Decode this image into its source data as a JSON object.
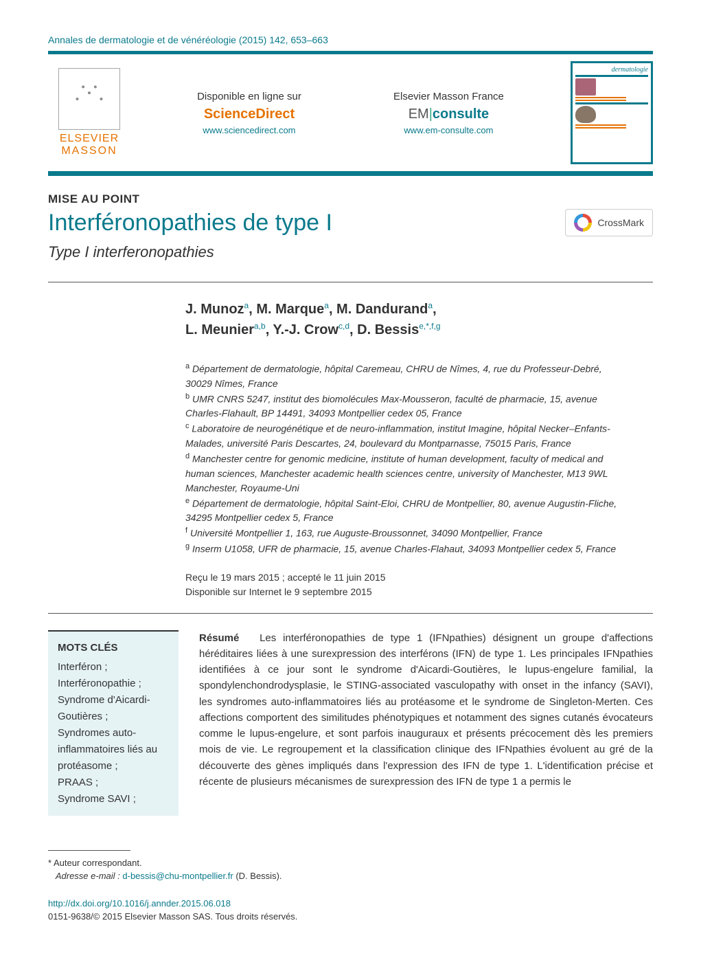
{
  "journal_ref": "Annales de dermatologie et de vénéréologie (2015) 142, 653–663",
  "masthead": {
    "elsevier": "ELSEVIER",
    "masson": "MASSON",
    "online_label": "Disponible en ligne sur",
    "sciencedirect": "ScienceDirect",
    "sd_url": "www.sciencedirect.com",
    "emf_label": "Elsevier Masson France",
    "em_part1": "EM",
    "em_part2": "consulte",
    "em_url": "www.em-consulte.com",
    "cover_title": "dermatologie"
  },
  "section_label": "MISE AU POINT",
  "title": "Interféronopathies de type I",
  "subtitle": "Type I interferonopathies",
  "crossmark": "CrossMark",
  "authors_html": "J. Munoz<sup>a</sup>, M. Marque<sup>a</sup>, M. Dandurand<sup>a</sup>,<br>L. Meunier<sup>a,b</sup>, Y.-J. Crow<sup>c,d</sup>, D. Bessis<sup>e,*,f,g</sup>",
  "affiliations": [
    {
      "ref": "a",
      "text": "Département de dermatologie, hôpital Caremeau, CHRU de Nîmes, 4, rue du Professeur-Debré, 30029 Nîmes, France"
    },
    {
      "ref": "b",
      "text": "UMR CNRS 5247, institut des biomolécules Max-Mousseron, faculté de pharmacie, 15, avenue Charles-Flahault, BP 14491, 34093 Montpellier cedex 05, France"
    },
    {
      "ref": "c",
      "text": "Laboratoire de neurogénétique et de neuro-inflammation, institut Imagine, hôpital Necker–Enfants-Malades, université Paris Descartes, 24, boulevard du Montparnasse, 75015 Paris, France"
    },
    {
      "ref": "d",
      "text": "Manchester centre for genomic medicine, institute of human development, faculty of medical and human sciences, Manchester academic health sciences centre, university of Manchester, M13 9WL Manchester, Royaume-Uni"
    },
    {
      "ref": "e",
      "text": "Département de dermatologie, hôpital Saint-Eloi, CHRU de Montpellier, 80, avenue Augustin-Fliche, 34295 Montpellier cedex 5, France"
    },
    {
      "ref": "f",
      "text": "Université Montpellier 1, 163, rue Auguste-Broussonnet, 34090 Montpellier, France"
    },
    {
      "ref": "g",
      "text": "Inserm U1058, UFR de pharmacie, 15, avenue Charles-Flahaut, 34093 Montpellier cedex 5, France"
    }
  ],
  "dates": {
    "received": "Reçu le 19 mars 2015 ; accepté le 11 juin 2015",
    "online": "Disponible sur Internet le 9 septembre 2015"
  },
  "keywords": {
    "title": "MOTS CLÉS",
    "items": [
      "Interféron ;",
      "Interféronopathie ;",
      "Syndrome d'Aicardi-Goutières ;",
      "Syndromes auto-inflammatoires liés au protéasome ;",
      "PRAAS ;",
      "Syndrome SAVI ;"
    ]
  },
  "abstract": {
    "label": "Résumé",
    "text": "Les interféronopathies de type 1 (IFNpathies) désignent un groupe d'affections héréditaires liées à une surexpression des interférons (IFN) de type 1. Les principales IFNpathies identifiées à ce jour sont le syndrome d'Aicardi-Goutières, le lupus-engelure familial, la spondylenchondrodysplasie, le STING-associated vasculopathy with onset in the infancy (SAVI), les syndromes auto-inflammatoires liés au protéasome et le syndrome de Singleton-Merten. Ces affections comportent des similitudes phénotypiques et notamment des signes cutanés évocateurs comme le lupus-engelure, et sont parfois inauguraux et présents précocement dès les premiers mois de vie. Le regroupement et la classification clinique des IFNpathies évoluent au gré de la découverte des gènes impliqués dans l'expression des IFN de type 1. L'identification précise et récente de plusieurs mécanismes de surexpression des IFN de type 1 a permis le"
  },
  "footnote": {
    "corresponding": "Auteur correspondant.",
    "email_label": "Adresse e-mail :",
    "email": "d-bessis@chu-montpellier.fr",
    "email_who": "(D. Bessis)."
  },
  "doi": {
    "url": "http://dx.doi.org/10.1016/j.annder.2015.06.018",
    "copyright": "0151-9638/© 2015 Elsevier Masson SAS. Tous droits réservés."
  },
  "colors": {
    "teal": "#0a7a8c",
    "orange": "#e57200",
    "kw_bg": "#e6f3f5"
  }
}
